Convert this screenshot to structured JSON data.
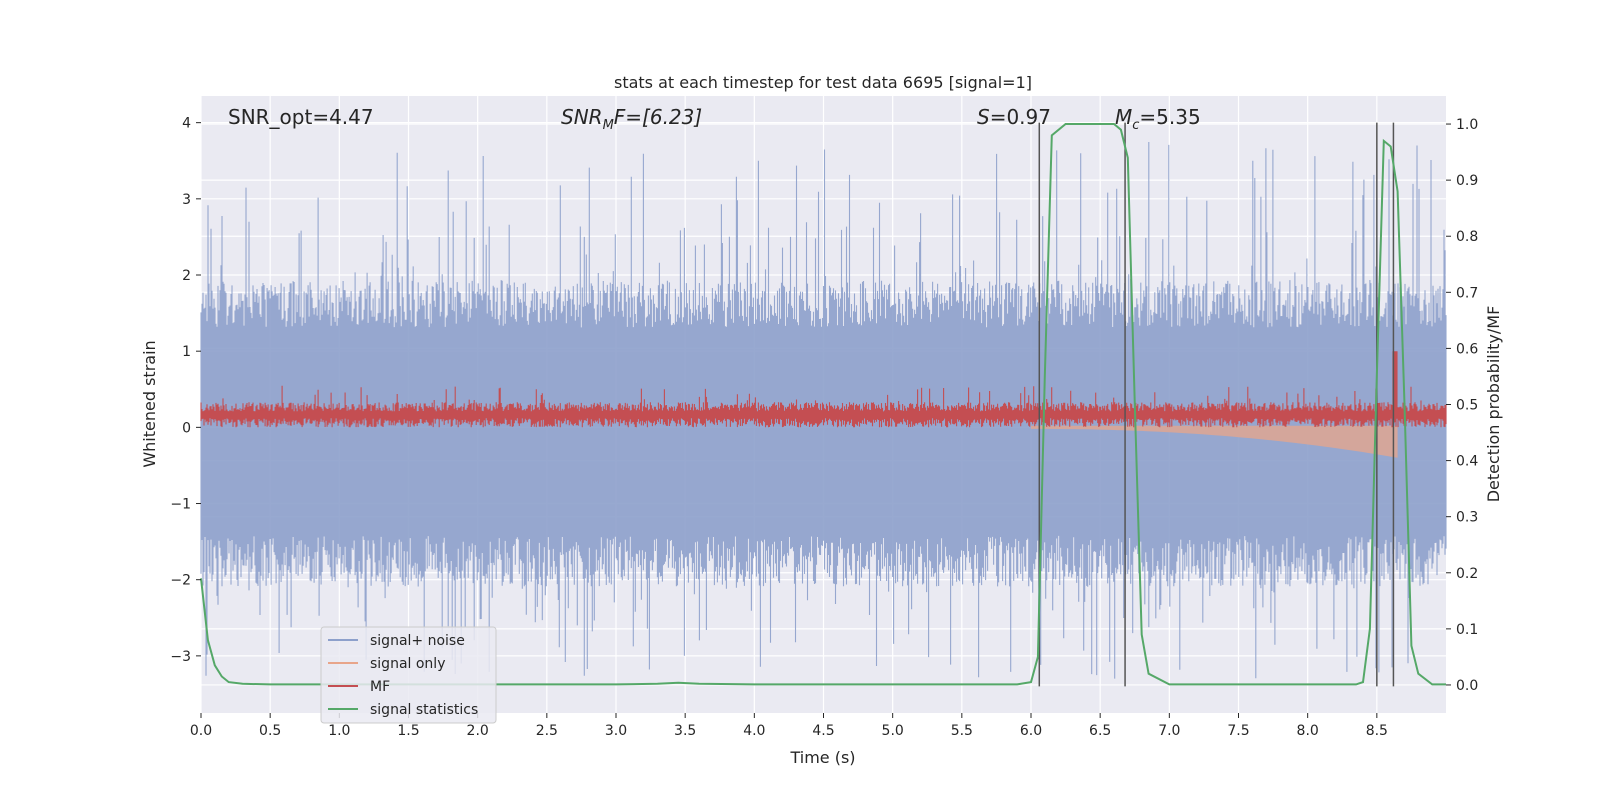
{
  "chart_data": {
    "type": "line",
    "title": "stats at each timestep for test data 6695 [signal=1]",
    "xlabel": "Time (s)",
    "ylabel_left": "Whitened strain",
    "ylabel_right": "Detection probability/MF",
    "xlim": [
      0,
      9.0
    ],
    "ylim_left": [
      -3.75,
      4.35
    ],
    "ylim_right": [
      -0.05,
      1.05
    ],
    "x_ticks": [
      0.0,
      0.5,
      1.0,
      1.5,
      2.0,
      2.5,
      3.0,
      3.5,
      4.0,
      4.5,
      5.0,
      5.5,
      6.0,
      6.5,
      7.0,
      7.5,
      8.0,
      8.5
    ],
    "x_tick_labels": [
      "0.0",
      "0.5",
      "1.0",
      "1.5",
      "2.0",
      "2.5",
      "3.0",
      "3.5",
      "4.0",
      "4.5",
      "5.0",
      "5.5",
      "6.0",
      "6.5",
      "7.0",
      "7.5",
      "8.0",
      "8.5"
    ],
    "y_left_ticks": [
      4,
      3,
      2,
      1,
      0,
      -1,
      -2,
      -3
    ],
    "y_left_tick_labels": [
      "4",
      "3",
      "2",
      "1",
      "0",
      "−1",
      "−2",
      "−3"
    ],
    "y_right_ticks": [
      1.0,
      0.9,
      0.8,
      0.7,
      0.6,
      0.5,
      0.4,
      0.3,
      0.2,
      0.1,
      0.0
    ],
    "y_right_tick_labels": [
      "1.0",
      "0.9",
      "0.8",
      "0.7",
      "0.6",
      "0.5",
      "0.4",
      "0.3",
      "0.2",
      "0.1",
      "0.0"
    ],
    "grid": true,
    "legend_position": "lower-left",
    "legend": [
      {
        "label": "signal+ noise",
        "color": "#8da0cb"
      },
      {
        "label": "signal only",
        "color": "#e8a58a"
      },
      {
        "label": "MF",
        "color": "#c44e52"
      },
      {
        "label": "signal statistics",
        "color": "#55a868"
      }
    ],
    "annotations": {
      "snr_opt": "SNR_opt=4.47",
      "snr_mf_base": "SNR",
      "snr_mf_sub": "M",
      "snr_mf_rest": "F=[6.23]",
      "s_sym": "S",
      "s_rest": "=0.97",
      "mc_sym": "M",
      "mc_sub": "c",
      "mc_rest": "=5.35"
    },
    "series": [
      {
        "name": "signal statistics",
        "axis": "right",
        "color": "#55a868",
        "x": [
          0.0,
          0.05,
          0.1,
          0.15,
          0.2,
          0.3,
          0.5,
          1.0,
          2.0,
          3.0,
          3.3,
          3.45,
          3.6,
          4.0,
          5.0,
          5.9,
          6.0,
          6.05,
          6.1,
          6.15,
          6.25,
          6.4,
          6.6,
          6.65,
          6.7,
          6.75,
          6.8,
          6.85,
          7.0,
          7.5,
          8.0,
          8.35,
          8.4,
          8.45,
          8.5,
          8.55,
          8.6,
          8.65,
          8.7,
          8.75,
          8.8,
          8.9,
          9.0
        ],
        "y": [
          0.19,
          0.08,
          0.035,
          0.015,
          0.005,
          0.002,
          0.001,
          0.001,
          0.001,
          0.001,
          0.002,
          0.004,
          0.002,
          0.001,
          0.001,
          0.001,
          0.005,
          0.05,
          0.55,
          0.98,
          1.0,
          1.0,
          1.0,
          0.99,
          0.94,
          0.5,
          0.09,
          0.02,
          0.001,
          0.001,
          0.001,
          0.001,
          0.005,
          0.1,
          0.55,
          0.97,
          0.96,
          0.88,
          0.5,
          0.07,
          0.02,
          0.001,
          0.001
        ]
      }
    ],
    "signal_noise": {
      "name": "signal+ noise",
      "axis": "left",
      "color": "#8da0cb",
      "x_range": [
        0,
        9.0
      ],
      "band_low": -1.9,
      "band_high": 1.75,
      "peak_max": 3.8,
      "trough_min": -3.3
    },
    "signal_only": {
      "name": "signal only",
      "axis": "left",
      "color": "#e8a58a",
      "x_range": [
        6.0,
        8.65
      ],
      "amplitude_start": 0.02,
      "amplitude_end": 0.4
    },
    "mf": {
      "name": "MF",
      "axis": "left",
      "color": "#c44e52",
      "x_range": [
        0,
        9.0
      ],
      "base_low": 0.0,
      "base_high": 0.3,
      "peak_max": 1.0
    },
    "vertical_lines": {
      "axis": "left",
      "color": "#555555",
      "x": [
        6.06,
        6.68,
        8.5,
        8.62
      ],
      "y_top": 4.0,
      "y_bottom": -3.4
    }
  }
}
